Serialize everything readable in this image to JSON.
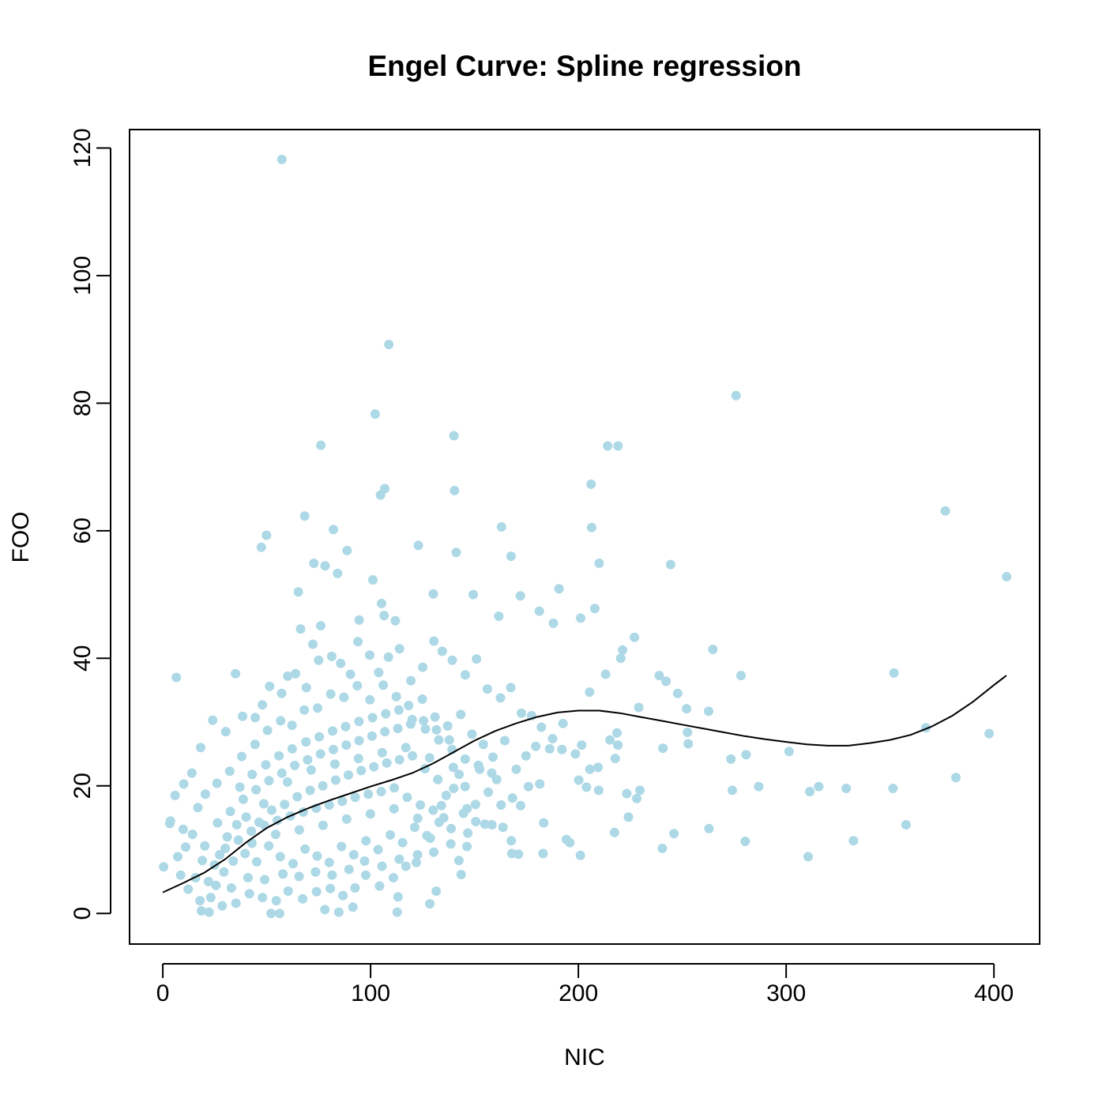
{
  "chart_data": {
    "type": "scatter",
    "title": "Engel Curve: Spline regression",
    "xlabel": "NIC",
    "ylabel": "FOO",
    "xlim": [
      -16,
      422
    ],
    "ylim": [
      -4.8,
      122.9
    ],
    "x_ticks": [
      0,
      100,
      200,
      300,
      400
    ],
    "x_tick_labels": [
      "0",
      "100",
      "200",
      "300",
      "400"
    ],
    "y_ticks": [
      0,
      20,
      40,
      60,
      80,
      100,
      120
    ],
    "y_tick_labels": [
      "0",
      "20",
      "40",
      "60",
      "80",
      "100",
      "120"
    ],
    "grid": false,
    "legend": "none",
    "point_color": "#add8e6",
    "line_color": "#000000",
    "points_representative": [
      [
        57.3,
        118.2
      ],
      [
        108.8,
        89.2
      ],
      [
        102.2,
        78.3
      ],
      [
        76.1,
        73.4
      ],
      [
        140.1,
        74.9
      ],
      [
        214.1,
        73.3
      ],
      [
        219.1,
        73.3
      ],
      [
        275.9,
        81.2
      ],
      [
        106.8,
        66.6
      ],
      [
        104.8,
        65.6
      ],
      [
        140.4,
        66.3
      ],
      [
        68.3,
        62.3
      ],
      [
        82.1,
        60.2
      ],
      [
        49.9,
        59.3
      ],
      [
        47.4,
        57.4
      ],
      [
        88.7,
        56.9
      ],
      [
        163.0,
        60.6
      ],
      [
        206.1,
        67.3
      ],
      [
        206.4,
        60.5
      ],
      [
        210.0,
        54.9
      ],
      [
        244.4,
        54.7
      ],
      [
        376.6,
        63.1
      ],
      [
        406.1,
        52.8
      ],
      [
        72.7,
        54.9
      ],
      [
        78.1,
        54.5
      ],
      [
        84.1,
        53.3
      ],
      [
        123.0,
        57.7
      ],
      [
        141.2,
        56.6
      ],
      [
        167.6,
        56.0
      ],
      [
        190.7,
        50.9
      ],
      [
        65.2,
        50.4
      ],
      [
        101.1,
        52.3
      ],
      [
        105.3,
        48.6
      ],
      [
        130.2,
        50.1
      ],
      [
        149.4,
        50.0
      ],
      [
        207.9,
        47.8
      ],
      [
        172.1,
        49.8
      ],
      [
        181.2,
        47.4
      ],
      [
        201.1,
        46.3
      ],
      [
        227.0,
        43.3
      ],
      [
        264.7,
        41.4
      ],
      [
        221.3,
        41.3
      ],
      [
        106.5,
        46.7
      ],
      [
        111.9,
        45.9
      ],
      [
        161.7,
        46.6
      ],
      [
        94.5,
        46.0
      ],
      [
        188.0,
        45.5
      ],
      [
        66.3,
        44.6
      ],
      [
        76.0,
        45.1
      ],
      [
        6.5,
        37.0
      ],
      [
        35.0,
        37.6
      ],
      [
        238.9,
        37.3
      ],
      [
        278.3,
        37.3
      ],
      [
        351.9,
        37.7
      ],
      [
        242.2,
        36.4
      ],
      [
        247.8,
        34.5
      ],
      [
        229.1,
        32.3
      ],
      [
        252.1,
        32.1
      ],
      [
        262.7,
        31.7
      ],
      [
        367.2,
        29.1
      ],
      [
        397.7,
        28.2
      ],
      [
        252.5,
        28.4
      ],
      [
        205.4,
        34.7
      ],
      [
        213.1,
        37.5
      ],
      [
        220.4,
        40.0
      ],
      [
        219.0,
        26.4
      ],
      [
        273.4,
        24.2
      ],
      [
        280.7,
        24.9
      ],
      [
        301.4,
        25.4
      ],
      [
        240.7,
        25.9
      ],
      [
        252.9,
        26.6
      ],
      [
        215.2,
        27.2
      ],
      [
        186.2,
        25.8
      ],
      [
        192.1,
        25.7
      ],
      [
        198.6,
        25.0
      ],
      [
        201.6,
        26.4
      ],
      [
        192.6,
        29.8
      ],
      [
        218.6,
        28.3
      ],
      [
        217.7,
        24.3
      ],
      [
        200.2,
        20.9
      ],
      [
        203.9,
        19.8
      ],
      [
        205.5,
        22.6
      ],
      [
        209.5,
        22.9
      ],
      [
        209.8,
        19.3
      ],
      [
        223.3,
        18.8
      ],
      [
        229.6,
        19.3
      ],
      [
        228.1,
        18.0
      ],
      [
        274.1,
        19.3
      ],
      [
        286.8,
        19.9
      ],
      [
        311.4,
        19.1
      ],
      [
        315.7,
        19.9
      ],
      [
        328.9,
        19.6
      ],
      [
        351.4,
        19.6
      ],
      [
        381.7,
        21.3
      ],
      [
        224.1,
        15.1
      ],
      [
        217.4,
        12.7
      ],
      [
        246.0,
        12.5
      ],
      [
        262.9,
        13.3
      ],
      [
        280.3,
        11.3
      ],
      [
        332.4,
        11.4
      ],
      [
        357.7,
        13.9
      ],
      [
        240.4,
        10.2
      ],
      [
        310.6,
        8.9
      ],
      [
        201.0,
        9.1
      ],
      [
        194.2,
        11.6
      ],
      [
        195.9,
        11.1
      ],
      [
        183.0,
        9.4
      ],
      [
        171.2,
        9.3
      ],
      [
        168.0,
        9.4
      ],
      [
        167.7,
        11.4
      ],
      [
        183.3,
        14.2
      ],
      [
        158.4,
        13.9
      ],
      [
        163.7,
        13.5
      ],
      [
        146.4,
        10.5
      ],
      [
        142.5,
        8.3
      ],
      [
        143.6,
        6.1
      ],
      [
        113.2,
        2.6
      ],
      [
        112.8,
        0.2
      ],
      [
        131.6,
        3.5
      ],
      [
        128.5,
        1.5
      ],
      [
        52.1,
        0.0
      ],
      [
        56.2,
        0.0
      ],
      [
        84.7,
        0.2
      ],
      [
        91.5,
        1.0
      ],
      [
        78.0,
        0.6
      ],
      [
        18.6,
        0.4
      ],
      [
        22.3,
        0.2
      ],
      [
        3.7,
        14.5
      ],
      [
        3.4,
        14.1
      ],
      [
        0.4,
        7.3
      ],
      [
        5.9,
        18.5
      ],
      [
        10.1,
        20.3
      ],
      [
        14.0,
        22.0
      ],
      [
        18.2,
        26.0
      ],
      [
        24.0,
        30.3
      ],
      [
        30.3,
        28.5
      ],
      [
        38.4,
        30.9
      ],
      [
        44.5,
        30.7
      ],
      [
        47.9,
        32.7
      ],
      [
        51.4,
        35.6
      ],
      [
        57.2,
        34.5
      ],
      [
        60.1,
        37.2
      ],
      [
        63.9,
        37.6
      ],
      [
        69.1,
        35.4
      ],
      [
        72.2,
        42.2
      ],
      [
        75.0,
        39.7
      ],
      [
        81.3,
        40.3
      ],
      [
        85.6,
        39.2
      ],
      [
        90.3,
        37.5
      ],
      [
        93.9,
        42.6
      ],
      [
        99.6,
        40.5
      ],
      [
        103.9,
        37.8
      ],
      [
        108.6,
        40.2
      ],
      [
        113.9,
        41.5
      ],
      [
        119.4,
        36.5
      ],
      [
        125.1,
        38.6
      ],
      [
        130.5,
        42.7
      ],
      [
        134.5,
        41.1
      ],
      [
        139.3,
        39.7
      ],
      [
        145.6,
        37.4
      ],
      [
        151.0,
        39.9
      ],
      [
        156.2,
        35.2
      ],
      [
        162.5,
        33.8
      ],
      [
        167.5,
        35.4
      ],
      [
        172.6,
        31.4
      ],
      [
        177.5,
        31.0
      ],
      [
        182.2,
        29.2
      ],
      [
        187.6,
        27.4
      ],
      [
        179.5,
        26.2
      ],
      [
        174.8,
        24.7
      ],
      [
        170.1,
        22.6
      ],
      [
        168.3,
        18.1
      ],
      [
        172.2,
        16.9
      ],
      [
        176.0,
        19.9
      ],
      [
        181.4,
        20.3
      ],
      [
        160.7,
        21.0
      ],
      [
        156.6,
        19.0
      ],
      [
        150.5,
        17.1
      ],
      [
        146.4,
        16.4
      ],
      [
        152.5,
        22.6
      ],
      [
        158.9,
        24.5
      ],
      [
        164.6,
        27.1
      ],
      [
        140.0,
        19.6
      ],
      [
        135.2,
        15.0
      ],
      [
        128.7,
        11.8
      ],
      [
        122.6,
        9.2
      ],
      [
        117.0,
        7.4
      ],
      [
        111.0,
        5.6
      ],
      [
        104.3,
        4.3
      ],
      [
        97.7,
        6.0
      ],
      [
        92.5,
        4.0
      ],
      [
        86.7,
        2.8
      ],
      [
        80.6,
        3.9
      ],
      [
        74.0,
        3.4
      ],
      [
        67.3,
        2.3
      ],
      [
        60.3,
        3.5
      ],
      [
        54.6,
        2.0
      ],
      [
        48.0,
        2.5
      ],
      [
        41.7,
        3.1
      ],
      [
        35.2,
        1.6
      ],
      [
        28.6,
        1.2
      ],
      [
        23.1,
        2.5
      ],
      [
        17.9,
        2.0
      ],
      [
        12.2,
        3.8
      ],
      [
        8.6,
        6.0
      ],
      [
        7.2,
        8.9
      ],
      [
        11.0,
        10.4
      ],
      [
        14.3,
        12.4
      ],
      [
        9.8,
        13.2
      ],
      [
        16.9,
        16.6
      ],
      [
        20.5,
        18.7
      ],
      [
        26.1,
        20.4
      ],
      [
        32.2,
        22.3
      ],
      [
        38.0,
        24.6
      ],
      [
        44.4,
        26.5
      ],
      [
        50.4,
        28.7
      ],
      [
        56.7,
        30.2
      ],
      [
        62.2,
        29.5
      ],
      [
        68.1,
        31.9
      ],
      [
        74.5,
        32.2
      ],
      [
        80.8,
        34.4
      ],
      [
        87.2,
        33.9
      ],
      [
        93.6,
        35.7
      ],
      [
        99.7,
        33.5
      ],
      [
        106.1,
        35.8
      ],
      [
        112.4,
        34.0
      ],
      [
        118.3,
        32.6
      ],
      [
        124.9,
        33.6
      ],
      [
        131.0,
        30.8
      ],
      [
        137.1,
        29.4
      ],
      [
        143.4,
        31.2
      ],
      [
        148.8,
        28.1
      ],
      [
        154.3,
        26.5
      ],
      [
        29.4,
        6.5
      ],
      [
        33.9,
        8.2
      ],
      [
        39.6,
        9.4
      ],
      [
        45.2,
        8.1
      ],
      [
        51.0,
        10.6
      ],
      [
        56.5,
        8.9
      ],
      [
        62.7,
        7.8
      ],
      [
        68.5,
        10.1
      ],
      [
        74.3,
        9.0
      ],
      [
        80.1,
        8.0
      ],
      [
        86.0,
        10.5
      ],
      [
        91.9,
        9.2
      ],
      [
        97.8,
        11.4
      ],
      [
        103.6,
        10.0
      ],
      [
        109.5,
        12.3
      ],
      [
        115.4,
        11.1
      ],
      [
        121.2,
        13.5
      ],
      [
        127.1,
        12.2
      ],
      [
        133.0,
        14.3
      ],
      [
        138.8,
        13.3
      ],
      [
        144.7,
        15.7
      ],
      [
        150.6,
        14.4
      ],
      [
        20.2,
        10.6
      ],
      [
        26.3,
        14.2
      ],
      [
        32.5,
        16.0
      ],
      [
        38.7,
        17.9
      ],
      [
        44.9,
        19.4
      ],
      [
        51.1,
        20.8
      ],
      [
        57.3,
        22.0
      ],
      [
        63.5,
        23.2
      ],
      [
        69.7,
        24.1
      ],
      [
        75.9,
        25.0
      ],
      [
        82.1,
        25.7
      ],
      [
        88.3,
        26.4
      ],
      [
        94.5,
        27.1
      ],
      [
        100.7,
        27.8
      ],
      [
        106.9,
        28.5
      ],
      [
        113.1,
        29.0
      ],
      [
        119.3,
        29.7
      ],
      [
        125.5,
        30.2
      ],
      [
        131.7,
        28.8
      ],
      [
        137.9,
        27.2
      ],
      [
        22.0,
        5.0
      ],
      [
        27.4,
        9.2
      ],
      [
        31.0,
        12.0
      ],
      [
        35.6,
        13.9
      ],
      [
        40.1,
        15.1
      ],
      [
        46.3,
        14.3
      ],
      [
        52.4,
        16.2
      ],
      [
        58.6,
        17.1
      ],
      [
        64.7,
        18.3
      ],
      [
        70.9,
        19.3
      ],
      [
        77.0,
        20.0
      ],
      [
        83.2,
        20.9
      ],
      [
        89.3,
        21.7
      ],
      [
        95.5,
        22.4
      ],
      [
        101.6,
        23.0
      ],
      [
        107.8,
        23.6
      ],
      [
        113.9,
        24.1
      ],
      [
        120.1,
        24.7
      ],
      [
        126.2,
        22.7
      ],
      [
        132.4,
        21.0
      ],
      [
        24.9,
        7.6
      ],
      [
        30.1,
        10.2
      ],
      [
        36.4,
        11.5
      ],
      [
        42.6,
        12.9
      ],
      [
        48.9,
        13.8
      ],
      [
        55.1,
        14.6
      ],
      [
        61.4,
        15.3
      ],
      [
        67.6,
        15.9
      ],
      [
        73.9,
        16.5
      ],
      [
        80.1,
        17.0
      ],
      [
        86.4,
        17.6
      ],
      [
        92.6,
        18.2
      ],
      [
        98.9,
        18.7
      ],
      [
        105.1,
        19.1
      ],
      [
        111.4,
        19.7
      ],
      [
        117.6,
        18.2
      ],
      [
        123.9,
        17.0
      ],
      [
        130.1,
        16.2
      ],
      [
        136.4,
        18.5
      ],
      [
        142.6,
        21.8
      ],
      [
        15.8,
        5.6
      ],
      [
        19.0,
        8.3
      ],
      [
        25.6,
        4.4
      ],
      [
        33.0,
        4.0
      ],
      [
        41.0,
        5.6
      ],
      [
        49.0,
        5.3
      ],
      [
        57.8,
        6.2
      ],
      [
        65.6,
        5.8
      ],
      [
        73.5,
        6.5
      ],
      [
        81.5,
        6.0
      ],
      [
        89.6,
        6.9
      ],
      [
        97.1,
        8.2
      ],
      [
        105.5,
        7.4
      ],
      [
        113.8,
        8.5
      ],
      [
        122.0,
        8.0
      ],
      [
        130.4,
        9.6
      ],
      [
        138.6,
        10.9
      ],
      [
        146.8,
        12.6
      ],
      [
        155.0,
        14.0
      ],
      [
        162.8,
        17.0
      ],
      [
        43.0,
        21.8
      ],
      [
        49.6,
        23.3
      ],
      [
        55.9,
        24.7
      ],
      [
        62.3,
        25.8
      ],
      [
        68.9,
        26.9
      ],
      [
        75.3,
        27.7
      ],
      [
        81.7,
        28.6
      ],
      [
        88.0,
        29.3
      ],
      [
        94.4,
        30.1
      ],
      [
        100.9,
        30.7
      ],
      [
        107.3,
        31.3
      ],
      [
        113.6,
        31.9
      ],
      [
        120.0,
        30.4
      ],
      [
        126.4,
        28.9
      ],
      [
        132.8,
        27.2
      ],
      [
        139.2,
        25.7
      ],
      [
        145.5,
        24.2
      ],
      [
        151.9,
        23.2
      ],
      [
        158.3,
        22.0
      ],
      [
        37.1,
        19.8
      ],
      [
        42.9,
        11.0
      ],
      [
        48.6,
        17.2
      ],
      [
        54.3,
        12.4
      ],
      [
        60.0,
        20.6
      ],
      [
        65.7,
        13.1
      ],
      [
        71.4,
        22.5
      ],
      [
        77.1,
        13.8
      ],
      [
        82.8,
        23.4
      ],
      [
        88.5,
        14.8
      ],
      [
        94.2,
        24.3
      ],
      [
        99.9,
        15.6
      ],
      [
        105.6,
        25.2
      ],
      [
        111.3,
        16.4
      ],
      [
        117.0,
        26.0
      ],
      [
        122.7,
        14.9
      ],
      [
        128.4,
        24.4
      ],
      [
        134.1,
        16.9
      ],
      [
        139.8,
        22.9
      ],
      [
        145.5,
        19.9
      ]
    ],
    "spline": [
      [
        0,
        3.3
      ],
      [
        10,
        4.8
      ],
      [
        20,
        6.4
      ],
      [
        30,
        8.5
      ],
      [
        40,
        11.1
      ],
      [
        50,
        13.4
      ],
      [
        60,
        15.1
      ],
      [
        70,
        16.5
      ],
      [
        80,
        17.7
      ],
      [
        90,
        18.8
      ],
      [
        100,
        19.9
      ],
      [
        110,
        20.9
      ],
      [
        120,
        22.0
      ],
      [
        130,
        23.5
      ],
      [
        140,
        25.3
      ],
      [
        150,
        27.1
      ],
      [
        160,
        28.6
      ],
      [
        170,
        29.8
      ],
      [
        180,
        30.8
      ],
      [
        190,
        31.5
      ],
      [
        200,
        31.8
      ],
      [
        210,
        31.8
      ],
      [
        220,
        31.4
      ],
      [
        230,
        30.8
      ],
      [
        240,
        30.2
      ],
      [
        250,
        29.6
      ],
      [
        260,
        29.0
      ],
      [
        270,
        28.4
      ],
      [
        280,
        27.8
      ],
      [
        290,
        27.3
      ],
      [
        300,
        26.9
      ],
      [
        310,
        26.5
      ],
      [
        320,
        26.3
      ],
      [
        330,
        26.3
      ],
      [
        340,
        26.7
      ],
      [
        350,
        27.2
      ],
      [
        360,
        28.0
      ],
      [
        370,
        29.3
      ],
      [
        380,
        31.0
      ],
      [
        390,
        33.2
      ],
      [
        400,
        35.8
      ],
      [
        406,
        37.3
      ]
    ]
  }
}
